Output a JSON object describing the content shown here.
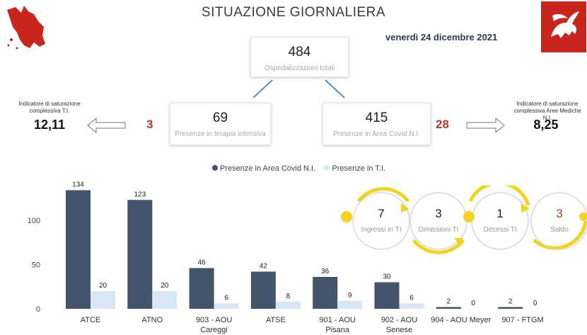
{
  "header": {
    "title": "SITUAZIONE GIORNALIERA",
    "date": "venerdì 24 dicembre 2021"
  },
  "colors": {
    "covid_bar": "#44546a",
    "ti_bar": "#d6e6f5",
    "accent_red": "#b63a22",
    "flow_yellow": "#f2d41f",
    "connector": "#5a8db5"
  },
  "summary": {
    "total_value": "484",
    "total_label": "Ospedalizzazioni totali",
    "ti_value": "69",
    "ti_label": "Presenze in terapia intensiva",
    "covid_value": "415",
    "covid_label": "Presenze in Area Covid N.I."
  },
  "saturation_left": {
    "label": "Indicatore di saturazione complessiva T.I.",
    "value": "12,11",
    "delta": "3"
  },
  "saturation_right": {
    "label": "Indicatore di saturazione complessiva Aree Mediche N.I.",
    "value": "8,25",
    "delta": "28"
  },
  "flow": [
    {
      "value": "7",
      "label": "Ingressi in TI"
    },
    {
      "value": "3",
      "label": "Dimissioni TI"
    },
    {
      "value": "1",
      "label": "Decessi TI"
    },
    {
      "value": "3",
      "label": "Saldo"
    }
  ],
  "chart_data": {
    "type": "bar",
    "categories": [
      "ATCE",
      "ATNO",
      "903 - AOU Careggi",
      "ATSE",
      "901 - AOU Pisana",
      "902 - AOU Senese",
      "904 - AOU Meyer",
      "907 - FTGM"
    ],
    "category_lines": [
      [
        "ATCE"
      ],
      [
        "ATNO"
      ],
      [
        "903 - AOU",
        "Careggi"
      ],
      [
        "ATSE"
      ],
      [
        "901 - AOU",
        "Pisana"
      ],
      [
        "902 - AOU",
        "Senese"
      ],
      [
        "904 - AOU Meyer"
      ],
      [
        "907 - FTGM"
      ]
    ],
    "series": [
      {
        "name": "Presenze in Area Covid N.I.",
        "values": [
          134,
          123,
          46,
          42,
          36,
          30,
          2,
          2
        ]
      },
      {
        "name": "Presenze in T.I.",
        "values": [
          20,
          20,
          6,
          8,
          9,
          6,
          0,
          0
        ]
      }
    ],
    "yticks": [
      0,
      50,
      100
    ],
    "ylim": [
      0,
      140
    ],
    "legend_position": "top",
    "grid": false
  }
}
